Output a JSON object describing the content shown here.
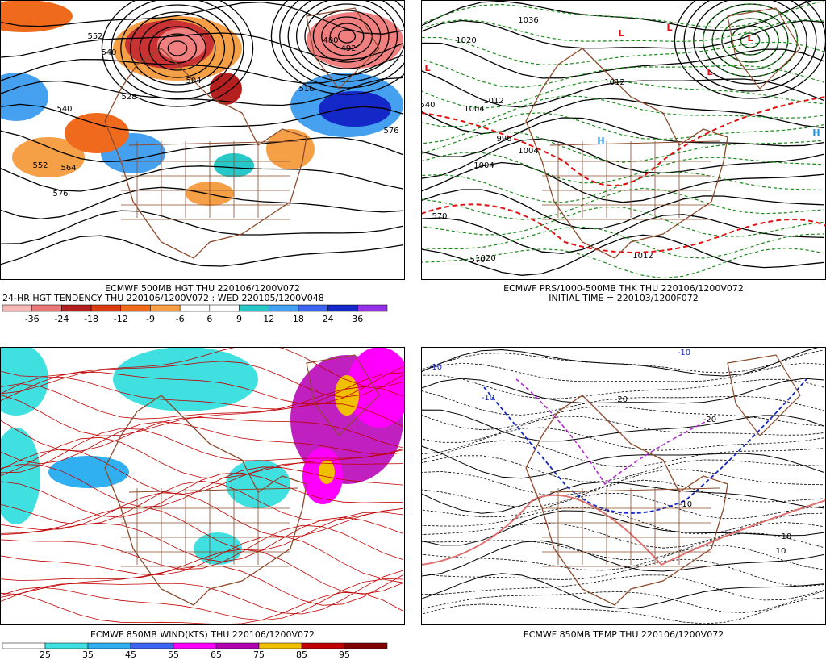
{
  "panels": [
    {
      "caption": "ECMWF 500MB HGT THU 220106/1200V072",
      "caption2": "24-HR HGT TENDENCY THU 220106/1200V072 : WED 220105/1200V048",
      "colorbar": [
        -36,
        -24,
        -18,
        -12,
        -9,
        -6,
        6,
        9,
        12,
        18,
        24,
        36
      ],
      "contour_labels": [
        552,
        540,
        504,
        528,
        540,
        552,
        564,
        576,
        480,
        492,
        516,
        576
      ]
    },
    {
      "caption": "ECMWF PRS/1000-500MB THK THU 220106/1200V072",
      "caption2": "INITIAL TIME = 220103/1200F072",
      "contour_labels": [
        1036,
        1020,
        1004,
        1012,
        996,
        1004,
        1020,
        1012,
        1004,
        1012,
        570,
        570,
        540
      ],
      "symbols": [
        "L",
        "L",
        "L",
        "L",
        "H",
        "H",
        "L"
      ]
    },
    {
      "caption": "ECMWF 850MB WIND(KTS) THU 220106/1200V072",
      "colorbar": [
        25,
        35,
        45,
        55,
        65,
        75,
        85,
        95
      ]
    },
    {
      "caption": "ECMWF 850MB TEMP THU 220106/1200V072",
      "contour_labels": [
        -10,
        -10,
        -10,
        -20,
        -20,
        -10,
        10,
        10
      ]
    }
  ]
}
